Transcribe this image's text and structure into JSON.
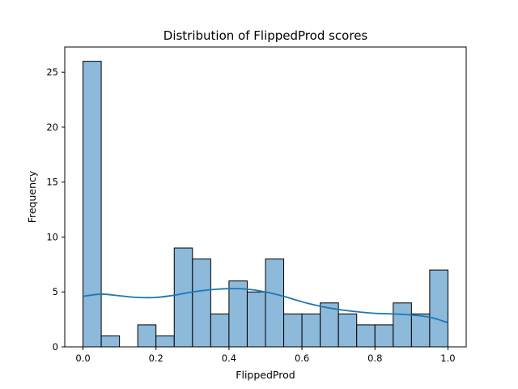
{
  "chart_data": {
    "type": "bar",
    "title": "Distribution of FlippedProd scores",
    "xlabel": "FlippedProd",
    "ylabel": "Frequency",
    "xlim": [
      -0.05,
      1.05
    ],
    "ylim": [
      0,
      27.3
    ],
    "x_ticks": [
      0.0,
      0.2,
      0.4,
      0.6,
      0.8,
      1.0
    ],
    "x_tick_labels": [
      "0.0",
      "0.2",
      "0.4",
      "0.6",
      "0.8",
      "1.0"
    ],
    "y_ticks": [
      0,
      5,
      10,
      15,
      20,
      25
    ],
    "y_tick_labels": [
      "0",
      "5",
      "10",
      "15",
      "20",
      "25"
    ],
    "bin_edges": [
      0.0,
      0.05,
      0.1,
      0.15,
      0.2,
      0.25,
      0.3,
      0.35,
      0.4,
      0.45,
      0.5,
      0.55,
      0.6,
      0.65,
      0.7,
      0.75,
      0.8,
      0.85,
      0.9,
      0.95,
      1.0
    ],
    "values": [
      26,
      1,
      0,
      2,
      1,
      9,
      8,
      3,
      6,
      5,
      8,
      3,
      3,
      4,
      3,
      2,
      2,
      4,
      3,
      7
    ],
    "kde": {
      "x": [
        0.0,
        0.05,
        0.1,
        0.15,
        0.2,
        0.25,
        0.3,
        0.35,
        0.4,
        0.45,
        0.5,
        0.55,
        0.6,
        0.65,
        0.7,
        0.75,
        0.8,
        0.85,
        0.9,
        0.95,
        1.0
      ],
      "y": [
        4.6,
        4.8,
        4.65,
        4.5,
        4.5,
        4.7,
        5.0,
        5.2,
        5.3,
        5.25,
        5.0,
        4.6,
        4.1,
        3.7,
        3.4,
        3.2,
        3.05,
        3.0,
        2.9,
        2.7,
        2.2
      ]
    },
    "grid": false,
    "colors": {
      "bar_fill": "#8db9da",
      "bar_edge": "#000000",
      "kde_line": "#1f77b4",
      "axes": "#000000"
    }
  }
}
